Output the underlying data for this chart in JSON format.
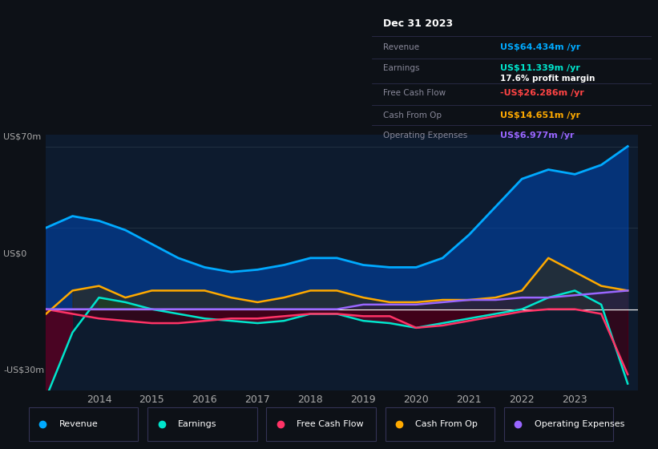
{
  "background_color": "#0d1117",
  "plot_bg_color": "#0d1b2e",
  "ylabel_top": "US$70m",
  "ylabel_zero": "US$0",
  "ylabel_bottom": "-US$30m",
  "years": [
    2013.0,
    2013.5,
    2014.0,
    2014.5,
    2015.0,
    2015.5,
    2016.0,
    2016.5,
    2017.0,
    2017.5,
    2018.0,
    2018.5,
    2019.0,
    2019.5,
    2020.0,
    2020.5,
    2021.0,
    2021.5,
    2022.0,
    2022.5,
    2023.0,
    2023.5,
    2024.0
  ],
  "revenue": [
    35,
    40,
    38,
    34,
    28,
    22,
    18,
    16,
    17,
    19,
    22,
    22,
    19,
    18,
    18,
    22,
    32,
    44,
    56,
    60,
    58,
    62,
    70
  ],
  "earnings": [
    -38,
    -10,
    5,
    3,
    0,
    -2,
    -4,
    -5,
    -6,
    -5,
    -2,
    -2,
    -5,
    -6,
    -8,
    -6,
    -4,
    -2,
    0,
    5,
    8,
    2,
    -32
  ],
  "free_cash_flow": [
    0,
    -2,
    -4,
    -5,
    -6,
    -6,
    -5,
    -4,
    -4,
    -3,
    -2,
    -2,
    -3,
    -3,
    -8,
    -7,
    -5,
    -3,
    -1,
    0,
    0,
    -2,
    -28
  ],
  "cash_from_op": [
    -2,
    8,
    10,
    5,
    8,
    8,
    8,
    5,
    3,
    5,
    8,
    8,
    5,
    3,
    3,
    4,
    4,
    5,
    8,
    22,
    16,
    10,
    8
  ],
  "operating_expenses": [
    0,
    0,
    0,
    0,
    0,
    0,
    0,
    0,
    0,
    0,
    0,
    0,
    2,
    2,
    2,
    3,
    4,
    4,
    5,
    5,
    6,
    7,
    8
  ],
  "revenue_color": "#00aaff",
  "earnings_color": "#00e5cc",
  "free_cash_flow_color": "#ff3366",
  "cash_from_op_color": "#ffaa00",
  "operating_expenses_color": "#9966ff",
  "revenue_fill_color": "#0044aa",
  "earnings_fill_pos_color": "#005544",
  "earnings_fill_neg_color": "#550022",
  "fcf_fill_neg_color": "#3d0015",
  "cash_op_fill_color": "#3d2a00",
  "op_exp_fill_color": "#2d1a44",
  "info_box": {
    "date": "Dec 31 2023",
    "revenue_val": "US$64.434m",
    "earnings_val": "US$11.339m",
    "profit_margin": "17.6%",
    "fcf_val": "-US$26.286m",
    "cash_op_val": "US$14.651m",
    "op_exp_val": "US$6.977m"
  },
  "legend_items": [
    "Revenue",
    "Earnings",
    "Free Cash Flow",
    "Cash From Op",
    "Operating Expenses"
  ],
  "legend_colors": [
    "#00aaff",
    "#00e5cc",
    "#ff3366",
    "#ffaa00",
    "#9966ff"
  ],
  "xlim": [
    2013.0,
    2024.2
  ],
  "ylim": [
    -35,
    75
  ],
  "x_ticks": [
    2014,
    2015,
    2016,
    2017,
    2018,
    2019,
    2020,
    2021,
    2022,
    2023
  ]
}
